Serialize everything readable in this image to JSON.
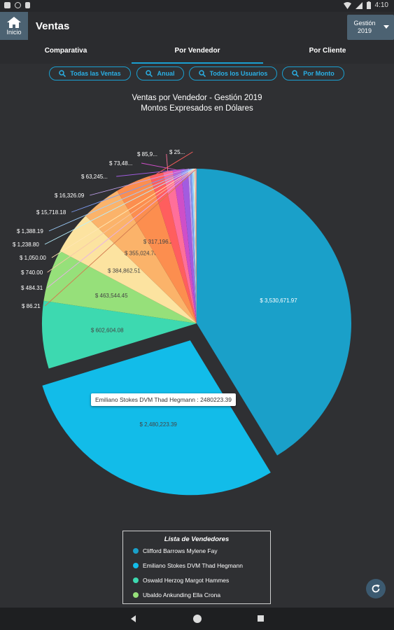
{
  "status_bar": {
    "time": "4:10"
  },
  "app_bar": {
    "home_label": "Inicio",
    "title": "Ventas",
    "year_label": "Gestión",
    "year_value": "2019"
  },
  "tabs": [
    {
      "label": "Comparativa",
      "active": false
    },
    {
      "label": "Por Vendedor",
      "active": true
    },
    {
      "label": "Por Cliente",
      "active": false
    }
  ],
  "filters": [
    {
      "label": "Todas las Ventas",
      "icon": "search-icon"
    },
    {
      "label": "Anual",
      "icon": "search-icon"
    },
    {
      "label": "Todos los Usuarios",
      "icon": "search-icon"
    },
    {
      "label": "Por Monto",
      "icon": "search-icon"
    }
  ],
  "chart_data": {
    "type": "pie",
    "title": "Ventas por Vendedor - Gestión 2019",
    "subtitle": "Montos Expresados en Dólares",
    "slices": [
      {
        "label": "$ 3,530,671.97",
        "value": 3530671.97,
        "color": "#1aa0c9"
      },
      {
        "label": "$ 2,480,223.39",
        "value": 2480223.39,
        "color": "#12bce9",
        "exploded": true
      },
      {
        "label": "$ 602,604.08",
        "value": 602604.08,
        "color": "#3dd9b0"
      },
      {
        "label": "$ 463,544.45",
        "value": 463544.45,
        "color": "#96e07a"
      },
      {
        "label": "$ 384,862.51",
        "value": 384862.51,
        "color": "#fce3a0"
      },
      {
        "label": "$ 355,024.70",
        "value": 355024.7,
        "color": "#fbb36a"
      },
      {
        "label": "$ 317,196.28",
        "value": 317196.28,
        "color": "#fc8e4f"
      },
      {
        "label": "$ 25...",
        "value": 120000,
        "color": "#ff5e5e"
      },
      {
        "label": "$ 85,9...",
        "value": 85900,
        "color": "#ff6f9a"
      },
      {
        "label": "$ 73,48...",
        "value": 73480,
        "color": "#cf4fc8"
      },
      {
        "label": "$ 63,245...",
        "value": 63245,
        "color": "#a25ce0"
      },
      {
        "label": "$ 16,326.09",
        "value": 16326.09,
        "color": "#c3a3f0"
      },
      {
        "label": "$ 15,718.18",
        "value": 15718.18,
        "color": "#7d9bf2"
      },
      {
        "label": "$ 1,388.19",
        "value": 12000,
        "color": "#9fd0ff"
      },
      {
        "label": "$ 1,238.80",
        "value": 10000,
        "color": "#b7f0ff"
      },
      {
        "label": "$ 1,050.00",
        "value": 8000,
        "color": "#ffe6b3"
      },
      {
        "label": "$ 740.00",
        "value": 6000,
        "color": "#f6c8a8"
      },
      {
        "label": "$ 484.31",
        "value": 4500,
        "color": "#e7b1e7"
      },
      {
        "label": "$ 86.21",
        "value": 3000,
        "color": "#d27a4f"
      }
    ]
  },
  "tooltip": {
    "text": "Emiliano Stokes DVM Thad Hegmann : 2480223.39"
  },
  "legend": {
    "title": "Lista de Vendedores",
    "items": [
      {
        "name": "Clifford Barrows Mylene Fay",
        "color": "#1aa0c9"
      },
      {
        "name": "Emiliano Stokes DVM Thad Hegmann",
        "color": "#12bce9"
      },
      {
        "name": "Oswald Herzog Margot Hammes",
        "color": "#3dd9b0"
      },
      {
        "name": "Ubaldo Ankunding Ella Crona",
        "color": "#96e07a"
      }
    ]
  }
}
